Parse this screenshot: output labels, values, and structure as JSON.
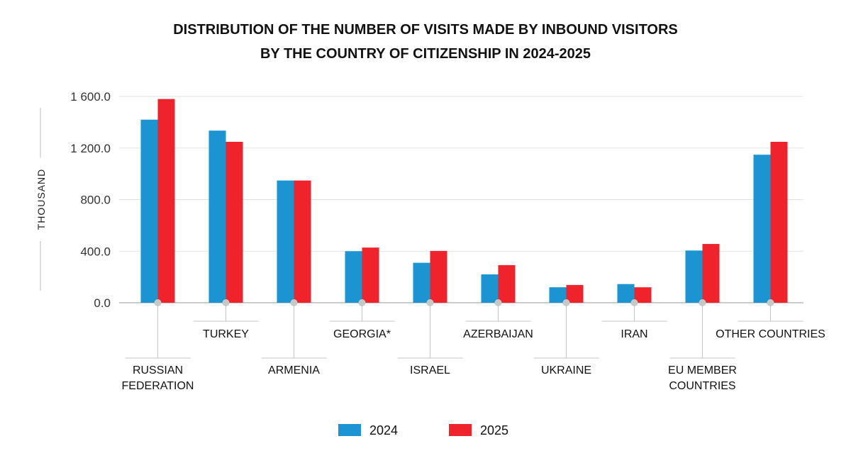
{
  "chart_data": {
    "type": "bar",
    "title": [
      "DISTRIBUTION OF THE NUMBER OF VISITS MADE BY INBOUND VISITORS",
      "BY THE COUNTRY OF CITIZENSHIP IN 2024-2025"
    ],
    "ylabel": "THOUSAND",
    "xlabel": "",
    "ylim": [
      0,
      1600
    ],
    "yticks": [
      "0.0",
      "400.0",
      "800.0",
      "1 200.0",
      "1 600.0"
    ],
    "categories": [
      [
        "RUSSIAN",
        "FEDERATION"
      ],
      [
        "TURKEY"
      ],
      [
        "ARMENIA"
      ],
      [
        "GEORGIA*"
      ],
      [
        "ISRAEL"
      ],
      [
        "AZERBAIJAN"
      ],
      [
        "UKRAINE"
      ],
      [
        "IRAN"
      ],
      [
        "EU MEMBER",
        "COUNTRIES"
      ],
      [
        "OTHER COUNTRIES"
      ]
    ],
    "series": [
      {
        "name": "2024",
        "color": "#1b94d1",
        "values": [
          1420,
          1335,
          948,
          400,
          310,
          220,
          120,
          145,
          405,
          1148
        ]
      },
      {
        "name": "2025",
        "color": "#ee232b",
        "values": [
          1580,
          1248,
          948,
          428,
          402,
          292,
          138,
          120,
          456,
          1248
        ]
      }
    ],
    "grid": true,
    "legend": "bottom-center"
  }
}
